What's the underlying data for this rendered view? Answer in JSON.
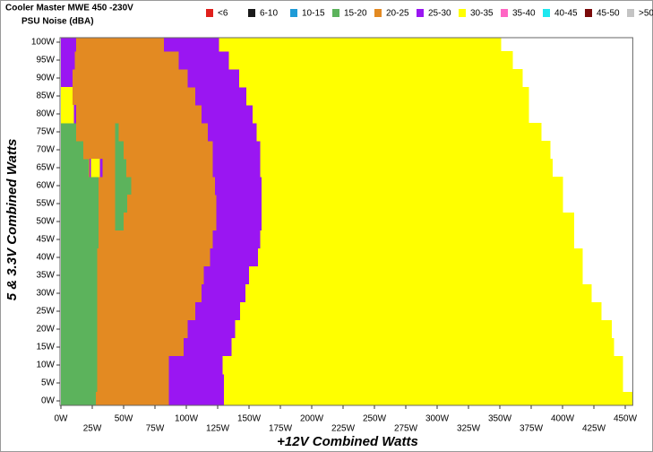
{
  "chart_data": {
    "type": "heatmap",
    "title": "Cooler Master MWE 450 -230V",
    "subtitle": "PSU Noise (dBA)",
    "x_label": "+12V Combined Watts",
    "y_label": "5 & 3.3V Combined Watts",
    "xlim": [
      0,
      456
    ],
    "ylim": [
      -1.25,
      101.25
    ],
    "xticks": [
      {
        "value": 0,
        "label": "0W"
      },
      {
        "value": 25,
        "label": "25W"
      },
      {
        "value": 50,
        "label": "50W"
      },
      {
        "value": 75,
        "label": "75W"
      },
      {
        "value": 100,
        "label": "100W"
      },
      {
        "value": 125,
        "label": "125W"
      },
      {
        "value": 150,
        "label": "150W"
      },
      {
        "value": 175,
        "label": "175W"
      },
      {
        "value": 200,
        "label": "200W"
      },
      {
        "value": 225,
        "label": "225W"
      },
      {
        "value": 250,
        "label": "250W"
      },
      {
        "value": 275,
        "label": "275W"
      },
      {
        "value": 300,
        "label": "300W"
      },
      {
        "value": 325,
        "label": "325W"
      },
      {
        "value": 350,
        "label": "350W"
      },
      {
        "value": 375,
        "label": "375W"
      },
      {
        "value": 400,
        "label": "400W"
      },
      {
        "value": 425,
        "label": "425W"
      },
      {
        "value": 450,
        "label": "450W"
      }
    ],
    "yticks": [
      {
        "value": 0,
        "label": "0W"
      },
      {
        "value": 5,
        "label": "5W"
      },
      {
        "value": 10,
        "label": "10W"
      },
      {
        "value": 15,
        "label": "15W"
      },
      {
        "value": 20,
        "label": "20W"
      },
      {
        "value": 25,
        "label": "25W"
      },
      {
        "value": 30,
        "label": "30W"
      },
      {
        "value": 35,
        "label": "35W"
      },
      {
        "value": 40,
        "label": "40W"
      },
      {
        "value": 45,
        "label": "45W"
      },
      {
        "value": 50,
        "label": "50W"
      },
      {
        "value": 55,
        "label": "55W"
      },
      {
        "value": 60,
        "label": "60W"
      },
      {
        "value": 65,
        "label": "65W"
      },
      {
        "value": 70,
        "label": "70W"
      },
      {
        "value": 75,
        "label": "75W"
      },
      {
        "value": 80,
        "label": "80W"
      },
      {
        "value": 85,
        "label": "85W"
      },
      {
        "value": 90,
        "label": "90W"
      },
      {
        "value": 95,
        "label": "95W"
      },
      {
        "value": 100,
        "label": "100W"
      }
    ],
    "series": [
      {
        "name": "<6",
        "color": "#e0201c",
        "cells": []
      },
      {
        "name": "6-10",
        "color": "#1a1a1a",
        "cells": []
      },
      {
        "name": "10-15",
        "color": "#1f9bd7",
        "cells": []
      },
      {
        "name": "15-20",
        "color": "#5cb35c",
        "cells": [
          [
            -1.25,
            2.5,
            0,
            28
          ],
          [
            2.5,
            7.5,
            0,
            29
          ],
          [
            7.5,
            12.5,
            0,
            29
          ],
          [
            12.5,
            17.5,
            0,
            29
          ],
          [
            17.5,
            22.5,
            0,
            29
          ],
          [
            22.5,
            27.5,
            0,
            29
          ],
          [
            27.5,
            32.5,
            0,
            29
          ],
          [
            32.5,
            37.5,
            0,
            29
          ],
          [
            37.5,
            42.5,
            0,
            29
          ],
          [
            42.5,
            47.5,
            0,
            30
          ],
          [
            47.5,
            52.5,
            0,
            30
          ],
          [
            47.5,
            52.5,
            43,
            50
          ],
          [
            52.5,
            57.5,
            0,
            30
          ],
          [
            52.5,
            57.5,
            43,
            53
          ],
          [
            57.5,
            62.5,
            0,
            30
          ],
          [
            57.5,
            62.5,
            43,
            56
          ],
          [
            62.5,
            67.5,
            0,
            22
          ],
          [
            62.5,
            67.5,
            43,
            52
          ],
          [
            67.5,
            72.5,
            0,
            18
          ],
          [
            67.5,
            72.5,
            43,
            50
          ],
          [
            72.5,
            77.5,
            0,
            12
          ],
          [
            72.5,
            77.5,
            43,
            46
          ]
        ]
      },
      {
        "name": "20-25",
        "color": "#e38a22",
        "cells": [
          [
            -1.25,
            2.5,
            28,
            86
          ],
          [
            2.5,
            7.5,
            29,
            86
          ],
          [
            7.5,
            12.5,
            29,
            86
          ],
          [
            12.5,
            17.5,
            29,
            98
          ],
          [
            17.5,
            22.5,
            29,
            101
          ],
          [
            22.5,
            27.5,
            29,
            107
          ],
          [
            27.5,
            32.5,
            29,
            112
          ],
          [
            32.5,
            37.5,
            29,
            114
          ],
          [
            37.5,
            42.5,
            29,
            119
          ],
          [
            42.5,
            47.5,
            30,
            121
          ],
          [
            47.5,
            52.5,
            30,
            43
          ],
          [
            47.5,
            52.5,
            50,
            124
          ],
          [
            52.5,
            57.5,
            30,
            43
          ],
          [
            52.5,
            57.5,
            53,
            124
          ],
          [
            57.5,
            62.5,
            30,
            43
          ],
          [
            57.5,
            62.5,
            56,
            123
          ],
          [
            62.5,
            67.5,
            22,
            23
          ],
          [
            62.5,
            67.5,
            33,
            43
          ],
          [
            62.5,
            67.5,
            52,
            121
          ],
          [
            67.5,
            72.5,
            18,
            43
          ],
          [
            67.5,
            72.5,
            50,
            121
          ],
          [
            72.5,
            77.5,
            12,
            43
          ],
          [
            72.5,
            77.5,
            46,
            117
          ],
          [
            77.5,
            82.5,
            12,
            112
          ],
          [
            82.5,
            87.5,
            9,
            107
          ],
          [
            87.5,
            92.5,
            9,
            101
          ],
          [
            92.5,
            97.5,
            11,
            94
          ],
          [
            97.5,
            101.25,
            12,
            82
          ]
        ]
      },
      {
        "name": "25-30",
        "color": "#9a16f2",
        "cells": [
          [
            -1.25,
            2.5,
            86,
            130
          ],
          [
            2.5,
            7.5,
            86,
            130
          ],
          [
            7.5,
            12.5,
            86,
            129
          ],
          [
            12.5,
            17.5,
            98,
            136
          ],
          [
            17.5,
            22.5,
            101,
            139
          ],
          [
            22.5,
            27.5,
            107,
            143
          ],
          [
            27.5,
            32.5,
            112,
            147
          ],
          [
            32.5,
            37.5,
            114,
            150
          ],
          [
            37.5,
            42.5,
            119,
            157
          ],
          [
            42.5,
            47.5,
            121,
            159
          ],
          [
            47.5,
            52.5,
            124,
            160
          ],
          [
            52.5,
            57.5,
            124,
            160
          ],
          [
            57.5,
            62.5,
            123,
            160
          ],
          [
            62.5,
            67.5,
            23,
            24
          ],
          [
            62.5,
            67.5,
            31,
            33
          ],
          [
            62.5,
            67.5,
            121,
            159
          ],
          [
            67.5,
            72.5,
            121,
            159
          ],
          [
            72.5,
            77.5,
            117,
            156
          ],
          [
            77.5,
            82.5,
            10,
            12
          ],
          [
            77.5,
            82.5,
            112,
            153
          ],
          [
            82.5,
            87.5,
            107,
            148
          ],
          [
            87.5,
            92.5,
            0,
            9
          ],
          [
            87.5,
            92.5,
            101,
            142
          ],
          [
            92.5,
            97.5,
            0,
            11
          ],
          [
            92.5,
            97.5,
            94,
            134
          ],
          [
            97.5,
            101.25,
            0,
            12
          ],
          [
            97.5,
            101.25,
            82,
            126
          ]
        ]
      },
      {
        "name": "30-35",
        "color": "#ffff00",
        "cells": [
          [
            -1.25,
            2.5,
            130,
            456
          ],
          [
            2.5,
            7.5,
            130,
            448
          ],
          [
            7.5,
            12.5,
            129,
            448
          ],
          [
            12.5,
            17.5,
            136,
            441
          ],
          [
            17.5,
            22.5,
            139,
            439
          ],
          [
            22.5,
            27.5,
            143,
            431
          ],
          [
            27.5,
            32.5,
            147,
            423
          ],
          [
            32.5,
            37.5,
            150,
            416
          ],
          [
            37.5,
            42.5,
            157,
            416
          ],
          [
            42.5,
            47.5,
            159,
            409
          ],
          [
            47.5,
            52.5,
            160,
            409
          ],
          [
            52.5,
            57.5,
            160,
            400
          ],
          [
            57.5,
            62.5,
            160,
            400
          ],
          [
            62.5,
            67.5,
            24,
            31
          ],
          [
            62.5,
            67.5,
            159,
            392
          ],
          [
            67.5,
            72.5,
            159,
            390
          ],
          [
            72.5,
            77.5,
            156,
            383
          ],
          [
            77.5,
            82.5,
            0,
            10
          ],
          [
            77.5,
            82.5,
            153,
            373
          ],
          [
            82.5,
            87.5,
            0,
            9
          ],
          [
            82.5,
            87.5,
            148,
            373
          ],
          [
            87.5,
            92.5,
            142,
            368
          ],
          [
            92.5,
            97.5,
            134,
            360
          ],
          [
            97.5,
            101.25,
            126,
            351
          ]
        ]
      },
      {
        "name": "35-40",
        "color": "#ff66c4",
        "cells": []
      },
      {
        "name": "40-45",
        "color": "#1ee8f0",
        "cells": []
      },
      {
        "name": "45-50",
        "color": "#7a0a0a",
        "cells": []
      },
      {
        "name": ">50",
        "color": "#c4c4c4",
        "cells": []
      }
    ]
  }
}
